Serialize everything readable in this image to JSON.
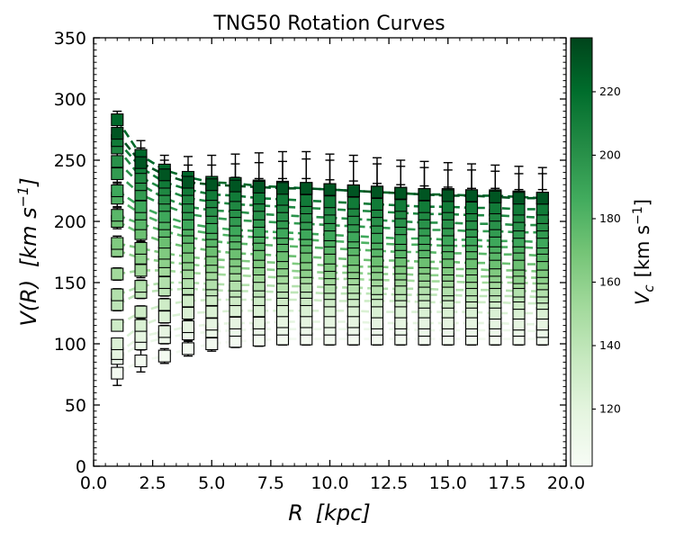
{
  "chart_data": {
    "type": "scatter",
    "title": "TNG50 Rotation Curves",
    "xlabel_var": "R",
    "xlabel_unit": "kpc",
    "ylabel_var": "V(R)",
    "ylabel_unit": "km s",
    "ylabel_exp": "−1",
    "xlim": [
      0,
      20
    ],
    "ylim": [
      0,
      350
    ],
    "xticks": [
      0,
      2.5,
      5,
      7.5,
      10,
      12.5,
      15,
      17.5,
      20
    ],
    "xtick_labels": [
      "0.0",
      "2.5",
      "5.0",
      "7.5",
      "10.0",
      "12.5",
      "15.0",
      "17.5",
      "20.0"
    ],
    "yticks": [
      0,
      50,
      100,
      150,
      200,
      250,
      300,
      350
    ],
    "ytick_labels": [
      "0",
      "50",
      "100",
      "150",
      "200",
      "250",
      "300",
      "350"
    ],
    "colorbar": {
      "label_var": "V",
      "label_sub": "c",
      "label_unit": "km s",
      "label_exp": "−1",
      "range": [
        102,
        237
      ],
      "ticks": [
        120,
        140,
        160,
        180,
        200,
        220
      ],
      "tick_labels": [
        "120",
        "140",
        "160",
        "180",
        "200",
        "220"
      ],
      "colormap": "Greens",
      "color_low": "#f7fcf5",
      "color_high": "#00441b"
    },
    "radii": [
      1,
      2,
      3,
      4,
      5,
      6,
      7,
      8,
      9,
      10,
      11,
      12,
      13,
      14,
      15,
      16,
      17,
      18,
      19
    ],
    "series": [
      {
        "vc": 222,
        "values": [
          283,
          254,
          242,
          236,
          232,
          231,
          229,
          228,
          227,
          226,
          225,
          224,
          223,
          222,
          222,
          221,
          221,
          220,
          219
        ],
        "errors": [
          7,
          12,
          12,
          17,
          22,
          24,
          27,
          29,
          30,
          29,
          29,
          28,
          27,
          27,
          26,
          26,
          25,
          25,
          25
        ]
      },
      {
        "vc": 230,
        "values": [
          272,
          248,
          238,
          232,
          230,
          229,
          228,
          227,
          227,
          226,
          225,
          224,
          223,
          222,
          221,
          221,
          220,
          219,
          219
        ],
        "errors": [
          10,
          12,
          12,
          14,
          16,
          18,
          20,
          22,
          24,
          24,
          24,
          23,
          22,
          22,
          21,
          21,
          21,
          20,
          20
        ]
      },
      {
        "vc": 212,
        "values": [
          266,
          244,
          232,
          226,
          222,
          221,
          219,
          218,
          217,
          216,
          215,
          214,
          213,
          212,
          212,
          211,
          211,
          210,
          210
        ],
        "errors": [
          10,
          12,
          12,
          13,
          14,
          15,
          16,
          17,
          18,
          18,
          18,
          17,
          17,
          17,
          16,
          16,
          16,
          16,
          16
        ]
      },
      {
        "vc": 205,
        "values": [
          260,
          236,
          226,
          219,
          216,
          214,
          213,
          212,
          211,
          210,
          209,
          208,
          207,
          206,
          206,
          205,
          205,
          204,
          203
        ],
        "errors": [
          9,
          11,
          11,
          12,
          12,
          13,
          14,
          15,
          16,
          16,
          15,
          15,
          15,
          15,
          14,
          14,
          14,
          14,
          14
        ]
      },
      {
        "vc": 200,
        "values": [
          249,
          230,
          219,
          212,
          209,
          208,
          206,
          205,
          204,
          203,
          202,
          201,
          200,
          199,
          199,
          198,
          198,
          197,
          197
        ],
        "errors": [
          8,
          10,
          10,
          11,
          11,
          12,
          13,
          14,
          14,
          14,
          14,
          14,
          13,
          13,
          13,
          13,
          13,
          13,
          13
        ]
      },
      {
        "vc": 195,
        "values": [
          239,
          222,
          213,
          206,
          203,
          201,
          200,
          199,
          198,
          197,
          196,
          195,
          194,
          193,
          193,
          192,
          192,
          191,
          191
        ],
        "errors": [
          8,
          9,
          9,
          10,
          10,
          11,
          12,
          13,
          13,
          13,
          13,
          13,
          12,
          12,
          12,
          12,
          12,
          12,
          12
        ]
      },
      {
        "vc": 188,
        "values": [
          225,
          212,
          204,
          198,
          195,
          193,
          192,
          191,
          190,
          189,
          188,
          187,
          186,
          186,
          185,
          185,
          184,
          184,
          183
        ],
        "errors": [
          7,
          8,
          8,
          9,
          9,
          10,
          11,
          11,
          12,
          12,
          12,
          12,
          11,
          11,
          11,
          11,
          11,
          11,
          11
        ]
      },
      {
        "vc": 182,
        "values": [
          219,
          206,
          198,
          193,
          190,
          188,
          187,
          186,
          185,
          184,
          183,
          182,
          181,
          181,
          180,
          180,
          179,
          179,
          178
        ],
        "errors": [
          7,
          8,
          8,
          8,
          9,
          10,
          10,
          11,
          11,
          11,
          11,
          11,
          10,
          10,
          10,
          10,
          10,
          10,
          10
        ]
      },
      {
        "vc": 178,
        "values": [
          205,
          198,
          192,
          187,
          184,
          182,
          181,
          180,
          179,
          178,
          177,
          176,
          175,
          175,
          174,
          174,
          173,
          173,
          172
        ],
        "errors": [
          6,
          7,
          7,
          8,
          8,
          9,
          9,
          10,
          10,
          10,
          10,
          10,
          10,
          10,
          9,
          9,
          9,
          9,
          9
        ]
      },
      {
        "vc": 172,
        "values": [
          200,
          190,
          183,
          179,
          176,
          174,
          173,
          172,
          171,
          170,
          169,
          168,
          168,
          167,
          167,
          166,
          166,
          165,
          165
        ],
        "errors": [
          6,
          7,
          7,
          7,
          8,
          8,
          9,
          9,
          9,
          9,
          9,
          9,
          9,
          9,
          9,
          9,
          9,
          9,
          9
        ]
      },
      {
        "vc": 165,
        "values": [
          182,
          178,
          174,
          171,
          169,
          168,
          167,
          166,
          165,
          164,
          163,
          163,
          162,
          162,
          161,
          161,
          160,
          160,
          159
        ],
        "errors": [
          6,
          6,
          7,
          7,
          7,
          8,
          8,
          8,
          9,
          9,
          9,
          9,
          8,
          8,
          8,
          8,
          8,
          8,
          8
        ]
      },
      {
        "vc": 160,
        "values": [
          176,
          170,
          167,
          165,
          163,
          162,
          161,
          160,
          159,
          158,
          158,
          157,
          157,
          156,
          156,
          155,
          155,
          154,
          154
        ],
        "errors": [
          5,
          6,
          6,
          7,
          7,
          7,
          8,
          8,
          8,
          8,
          8,
          8,
          8,
          8,
          8,
          8,
          8,
          8,
          8
        ]
      },
      {
        "vc": 152,
        "values": [
          157,
          160,
          160,
          158,
          157,
          156,
          155,
          154,
          154,
          153,
          153,
          152,
          152,
          151,
          151,
          150,
          150,
          150,
          149
        ],
        "errors": [
          5,
          6,
          6,
          6,
          7,
          7,
          7,
          7,
          8,
          8,
          8,
          8,
          7,
          7,
          7,
          7,
          7,
          7,
          7
        ]
      },
      {
        "vc": 145,
        "values": [
          140,
          147,
          150,
          150,
          149,
          148,
          148,
          147,
          147,
          146,
          146,
          145,
          145,
          145,
          144,
          144,
          144,
          143,
          143
        ],
        "errors": [
          5,
          5,
          6,
          6,
          6,
          6,
          7,
          7,
          7,
          7,
          7,
          7,
          7,
          7,
          7,
          7,
          7,
          7,
          7
        ]
      },
      {
        "vc": 140,
        "values": [
          132,
          142,
          144,
          145,
          144,
          143,
          143,
          142,
          142,
          141,
          141,
          141,
          140,
          140,
          140,
          139,
          139,
          139,
          138
        ],
        "errors": [
          5,
          5,
          5,
          6,
          6,
          6,
          6,
          7,
          7,
          7,
          7,
          7,
          7,
          7,
          7,
          7,
          7,
          7,
          7
        ]
      },
      {
        "vc": 132,
        "values": [
          115,
          126,
          132,
          135,
          136,
          136,
          136,
          136,
          136,
          135,
          135,
          135,
          135,
          134,
          134,
          134,
          134,
          133,
          133
        ],
        "errors": [
          4,
          5,
          5,
          5,
          6,
          6,
          6,
          6,
          6,
          6,
          6,
          6,
          6,
          6,
          6,
          6,
          6,
          6,
          6
        ]
      },
      {
        "vc": 125,
        "values": [
          100,
          115,
          122,
          125,
          126,
          127,
          127,
          127,
          127,
          127,
          127,
          126,
          126,
          126,
          126,
          126,
          125,
          125,
          125
        ],
        "errors": [
          4,
          5,
          5,
          5,
          5,
          5,
          6,
          6,
          6,
          6,
          6,
          6,
          6,
          6,
          6,
          6,
          6,
          6,
          6
        ]
      },
      {
        "vc": 118,
        "values": [
          92,
          106,
          110,
          114,
          116,
          117,
          117,
          118,
          118,
          118,
          118,
          117,
          117,
          117,
          117,
          117,
          117,
          116,
          116
        ],
        "errors": [
          4,
          4,
          5,
          5,
          5,
          5,
          5,
          5,
          5,
          5,
          5,
          5,
          5,
          5,
          5,
          5,
          5,
          5,
          5
        ]
      },
      {
        "vc": 112,
        "values": [
          88,
          100,
          105,
          108,
          110,
          111,
          112,
          112,
          112,
          112,
          112,
          112,
          112,
          111,
          111,
          111,
          111,
          111,
          110
        ],
        "errors": [
          4,
          4,
          5,
          5,
          5,
          5,
          5,
          5,
          5,
          5,
          5,
          5,
          5,
          5,
          5,
          5,
          5,
          5,
          5
        ]
      },
      {
        "vc": 106,
        "values": [
          76,
          86,
          90,
          96,
          100,
          102,
          103,
          104,
          104,
          104,
          104,
          104,
          104,
          104,
          104,
          104,
          104,
          104,
          104
        ],
        "errors": [
          10,
          9,
          6,
          6,
          6,
          5,
          5,
          5,
          5,
          5,
          5,
          5,
          5,
          5,
          5,
          5,
          5,
          5,
          5
        ]
      }
    ]
  }
}
